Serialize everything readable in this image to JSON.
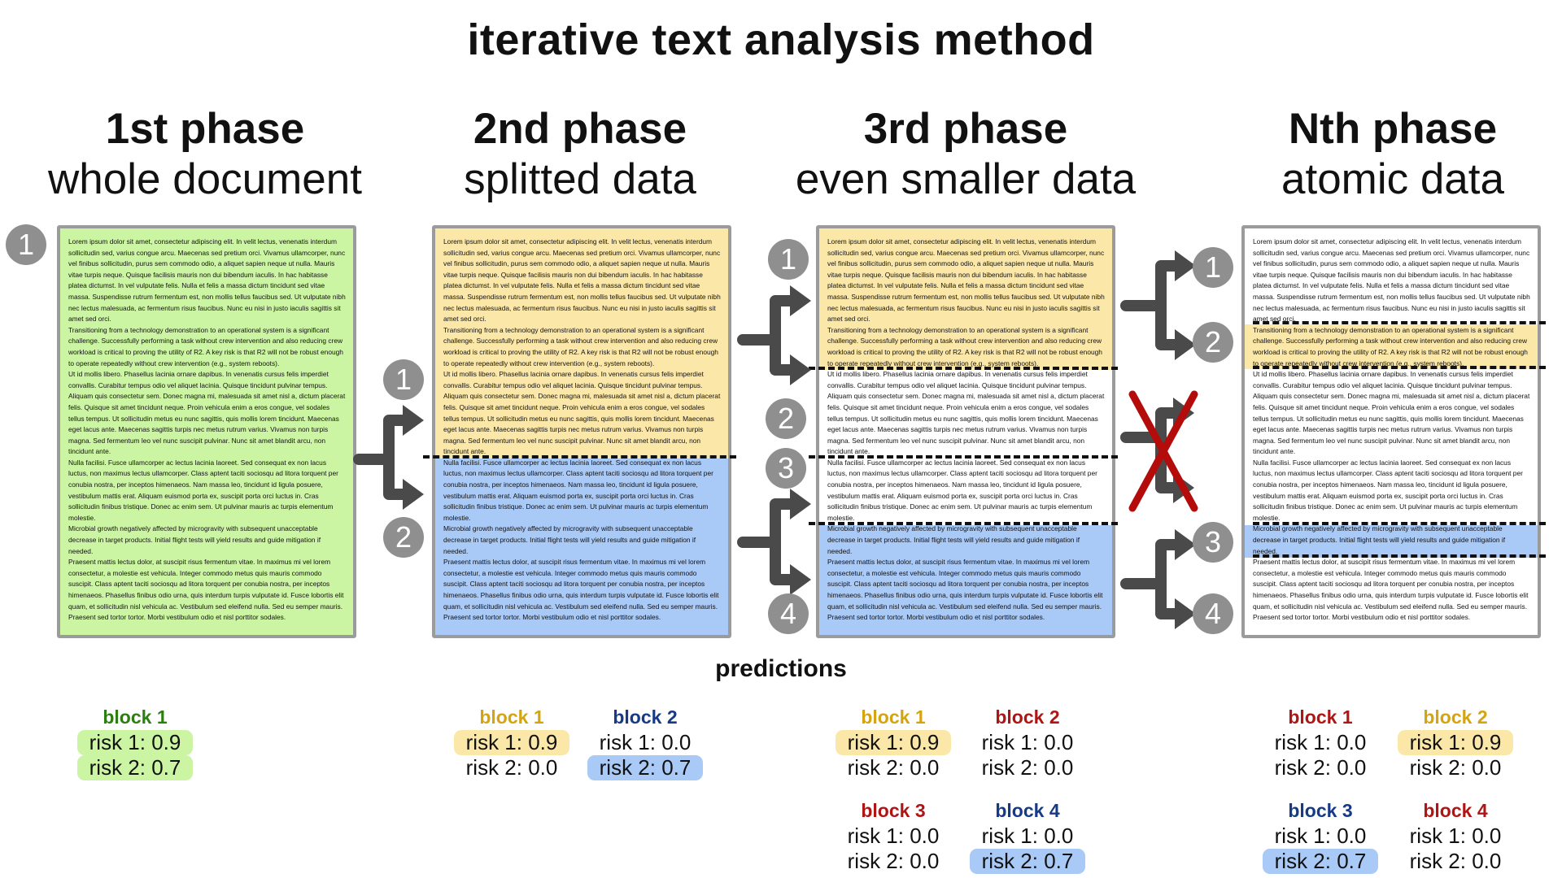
{
  "title": "iterative text analysis method",
  "colors": {
    "green": "#ccf5a3",
    "yellow": "#fbe7a8",
    "blue": "#a9c9f7",
    "circle": "#8f8f8f",
    "arrow": "#4a4a4a",
    "cross": "#b40b0b",
    "green_text": "#2e7d12",
    "yellow_text": "#d4a510",
    "red_text": "#b01515",
    "navy_text": "#173a86"
  },
  "phases": [
    {
      "title": "1st phase",
      "subtitle": "whole document"
    },
    {
      "title": "2nd phase",
      "subtitle": "splitted data"
    },
    {
      "title": "3rd phase",
      "subtitle": "even smaller data"
    },
    {
      "title": "Nth phase",
      "subtitle": "atomic data"
    }
  ],
  "document_paragraphs": [
    "Lorem ipsum dolor sit amet, consectetur adipiscing elit. In velit lectus, venenatis interdum sollicitudin sed, varius congue arcu. Maecenas sed pretium orci. Vivamus ullamcorper, nunc vel finibus sollicitudin, purus sem commodo odio, a aliquet sapien neque ut nulla. Mauris vitae turpis neque. Quisque facilisis mauris non dui bibendum iaculis. In hac habitasse platea dictumst. In vel vulputate felis. Nulla et felis a massa dictum tincidunt sed vitae massa. Suspendisse rutrum fermentum est, non mollis tellus faucibus sed. Ut vulputate nibh nec lectus malesuada, ac fermentum risus faucibus. Nunc eu nisi in justo iaculis sagittis sit amet sed orci.",
    "Transitioning from a technology demonstration to an operational system is a significant challenge. Successfully performing a task without crew intervention and also reducing crew workload is critical to proving the utility of R2. A key risk is that R2 will not be robust enough to operate repeatedly without crew intervention (e.g., system reboots).",
    "Ut id mollis libero. Phasellus lacinia ornare dapibus. In venenatis cursus felis imperdiet convallis. Curabitur tempus odio vel aliquet lacinia. Quisque tincidunt pulvinar tempus. Aliquam quis consectetur sem. Donec magna mi, malesuada sit amet nisl a, dictum placerat felis. Quisque sit amet tincidunt neque. Proin vehicula enim a eros congue, vel sodales tellus tempus. Ut sollicitudin metus eu nunc sagittis, quis mollis lorem tincidunt. Maecenas eget lacus ante. Maecenas sagittis turpis nec metus rutrum varius. Vivamus non turpis magna. Sed fermentum leo vel nunc suscipit pulvinar. Nunc sit amet blandit arcu, non tincidunt ante.",
    "Nulla facilisi. Fusce ullamcorper ac lectus lacinia laoreet. Sed consequat ex non lacus luctus, non maximus lectus ullamcorper. Class aptent taciti sociosqu ad litora torquent per conubia nostra, per inceptos himenaeos. Nam massa leo, tincidunt id ligula posuere, vestibulum mattis erat. Aliquam euismod porta ex, suscipit porta orci luctus in. Cras sollicitudin finibus tristique. Donec ac enim sem. Ut pulvinar mauris ac turpis elementum molestie.",
    "Microbial growth negatively affected by microgravity with subsequent unacceptable decrease in target products. Initial flight tests will yield results and guide mitigation if needed.",
    "Praesent mattis lectus dolor, at suscipit risus fermentum vitae. In maximus mi vel lorem consectetur, a molestie est vehicula. Integer commodo metus quis mauris commodo suscipit. Class aptent taciti sociosqu ad litora torquent per conubia nostra, per inceptos himenaeos. Phasellus finibus odio urna, quis interdum turpis vulputate id. Fusce lobortis elit quam, et sollicitudin nisl vehicula ac. Vestibulum sed eleifend nulla. Sed eu semper mauris. Praesent sed tortor tortor. Morbi vestibulum odio et nisl porttitor sodales."
  ],
  "step_numbers": {
    "p1": [
      "1"
    ],
    "p2": [
      "1",
      "2"
    ],
    "p3": [
      "1",
      "2",
      "3",
      "4"
    ],
    "pn": [
      "1",
      "2",
      "3",
      "4"
    ]
  },
  "predictions": {
    "title": "predictions",
    "phase1": [
      {
        "name": "block 1",
        "risk1": "risk 1: 0.9",
        "risk2": "risk 2: 0.7",
        "name_color": "green_text",
        "hl1": "green",
        "hl2": "green"
      }
    ],
    "phase2": [
      {
        "name": "block 1",
        "risk1": "risk 1: 0.9",
        "risk2": "risk 2: 0.0",
        "name_color": "yellow_text",
        "hl1": "yellow",
        "hl2": ""
      },
      {
        "name": "block 2",
        "risk1": "risk 1: 0.0",
        "risk2": "risk 2: 0.7",
        "name_color": "navy_text",
        "hl1": "",
        "hl2": "blue"
      }
    ],
    "phase3": [
      {
        "name": "block 1",
        "risk1": "risk 1: 0.9",
        "risk2": "risk 2: 0.0",
        "name_color": "yellow_text",
        "hl1": "yellow",
        "hl2": ""
      },
      {
        "name": "block 2",
        "risk1": "risk 1: 0.0",
        "risk2": "risk 2: 0.0",
        "name_color": "red_text",
        "hl1": "",
        "hl2": ""
      },
      {
        "name": "block 3",
        "risk1": "risk 1: 0.0",
        "risk2": "risk 2: 0.0",
        "name_color": "red_text",
        "hl1": "",
        "hl2": ""
      },
      {
        "name": "block 4",
        "risk1": "risk 1: 0.0",
        "risk2": "risk 2: 0.7",
        "name_color": "navy_text",
        "hl1": "",
        "hl2": "blue"
      }
    ],
    "phaseN": [
      {
        "name": "block 1",
        "risk1": "risk 1: 0.0",
        "risk2": "risk 2: 0.0",
        "name_color": "red_text",
        "hl1": "",
        "hl2": ""
      },
      {
        "name": "block 2",
        "risk1": "risk 1: 0.9",
        "risk2": "risk 2: 0.0",
        "name_color": "yellow_text",
        "hl1": "yellow",
        "hl2": ""
      },
      {
        "name": "block 3",
        "risk1": "risk 1: 0.0",
        "risk2": "risk 2: 0.7",
        "name_color": "navy_text",
        "hl1": "",
        "hl2": "blue"
      },
      {
        "name": "block 4",
        "risk1": "risk 1: 0.0",
        "risk2": "risk 2: 0.0",
        "name_color": "red_text",
        "hl1": "",
        "hl2": ""
      }
    ]
  },
  "icons": {
    "branch_arrow": "fork-arrow-icon",
    "rejected": "red-x-cross-icon"
  }
}
